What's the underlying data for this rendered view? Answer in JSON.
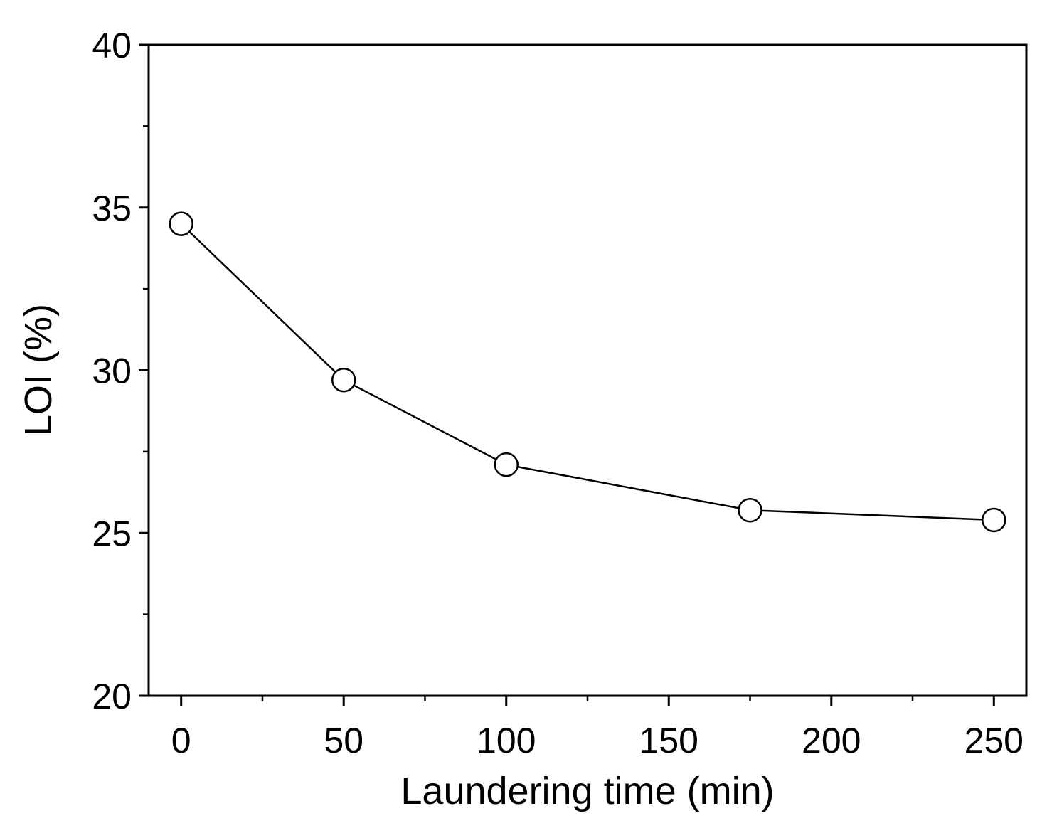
{
  "chart_data": {
    "type": "line",
    "title": "",
    "xlabel": "Laundering time (min)",
    "ylabel": "LOI (%)",
    "xlim": [
      -10,
      260
    ],
    "ylim": [
      20,
      40
    ],
    "xticks": [
      0,
      50,
      100,
      150,
      200,
      250
    ],
    "xtick_labels": [
      "0",
      "50",
      "100",
      "150",
      "200",
      "250"
    ],
    "xminor_ticks": [
      25,
      75,
      125,
      175,
      225
    ],
    "yticks": [
      20,
      25,
      30,
      35,
      40
    ],
    "ytick_labels": [
      "20",
      "25",
      "30",
      "35",
      "40"
    ],
    "yminor_ticks": [
      22.5,
      27.5,
      32.5,
      37.5
    ],
    "grid": false,
    "legend": "none",
    "series": [
      {
        "x": [
          0,
          50,
          100,
          175,
          250
        ],
        "y": [
          34.5,
          29.7,
          27.1,
          25.7,
          25.4
        ],
        "marker": "open-circle",
        "line_color": "#000000",
        "marker_fill": "#ffffff",
        "marker_edge": "#000000"
      }
    ]
  }
}
